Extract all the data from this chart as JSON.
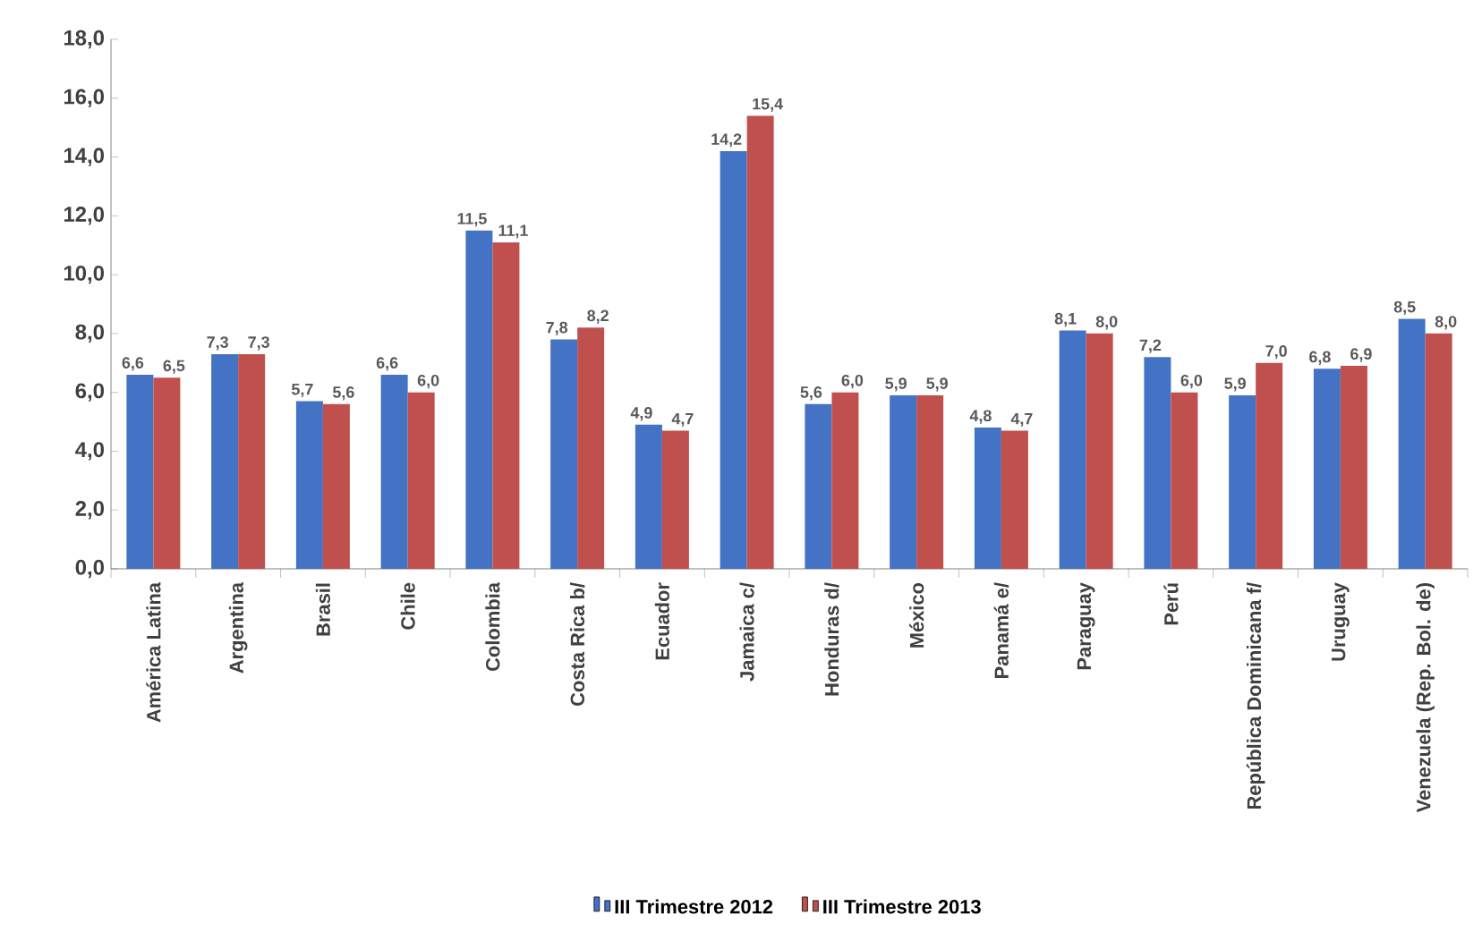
{
  "chart_data": {
    "type": "bar",
    "categories": [
      "América Latina",
      "Argentina",
      "Brasil",
      "Chile",
      "Colombia",
      "Costa Rica b/",
      "Ecuador",
      "Jamaica c/",
      "Honduras d/",
      "México",
      "Panamá e/",
      "Paraguay",
      "Perú",
      "República Dominicana f/",
      "Uruguay",
      "Venezuela (Rep. Bol. de)"
    ],
    "series": [
      {
        "name": "III Trimestre 2012",
        "color": "#4472c4",
        "values": [
          6.6,
          7.3,
          5.7,
          6.6,
          11.5,
          7.8,
          4.9,
          14.2,
          5.6,
          5.9,
          4.8,
          8.1,
          7.2,
          5.9,
          6.8,
          8.5
        ],
        "value_labels": [
          "6,6",
          "7,3",
          "5,7",
          "6,6",
          "11,5",
          "7,8",
          "4,9",
          "14,2",
          "5,6",
          "5,9",
          "4,8",
          "8,1",
          "7,2",
          "5,9",
          "6,8",
          "8,5"
        ]
      },
      {
        "name": "III Trimestre 2013",
        "color": "#c0504d",
        "values": [
          6.5,
          7.3,
          5.6,
          6.0,
          11.1,
          8.2,
          4.7,
          15.4,
          6.0,
          5.9,
          4.7,
          8.0,
          6.0,
          7.0,
          6.9,
          8.0
        ],
        "value_labels": [
          "6,5",
          "7,3",
          "5,6",
          "6,0",
          "11,1",
          "8,2",
          "4,7",
          "15,4",
          "6,0",
          "5,9",
          "4,7",
          "8,0",
          "6,0",
          "7,0",
          "6,9",
          "8,0"
        ]
      }
    ],
    "ylim": [
      0,
      18
    ],
    "yticks": [
      {
        "value": 0,
        "label": "0,0"
      },
      {
        "value": 2,
        "label": "2,0"
      },
      {
        "value": 4,
        "label": "4,0"
      },
      {
        "value": 6,
        "label": "6,0"
      },
      {
        "value": 8,
        "label": "8,0"
      },
      {
        "value": 10,
        "label": "10,0"
      },
      {
        "value": 12,
        "label": "12,0"
      },
      {
        "value": 14,
        "label": "14,0"
      },
      {
        "value": 16,
        "label": "16,0"
      },
      {
        "value": 18,
        "label": "18,0"
      }
    ],
    "legend": "bottom"
  }
}
